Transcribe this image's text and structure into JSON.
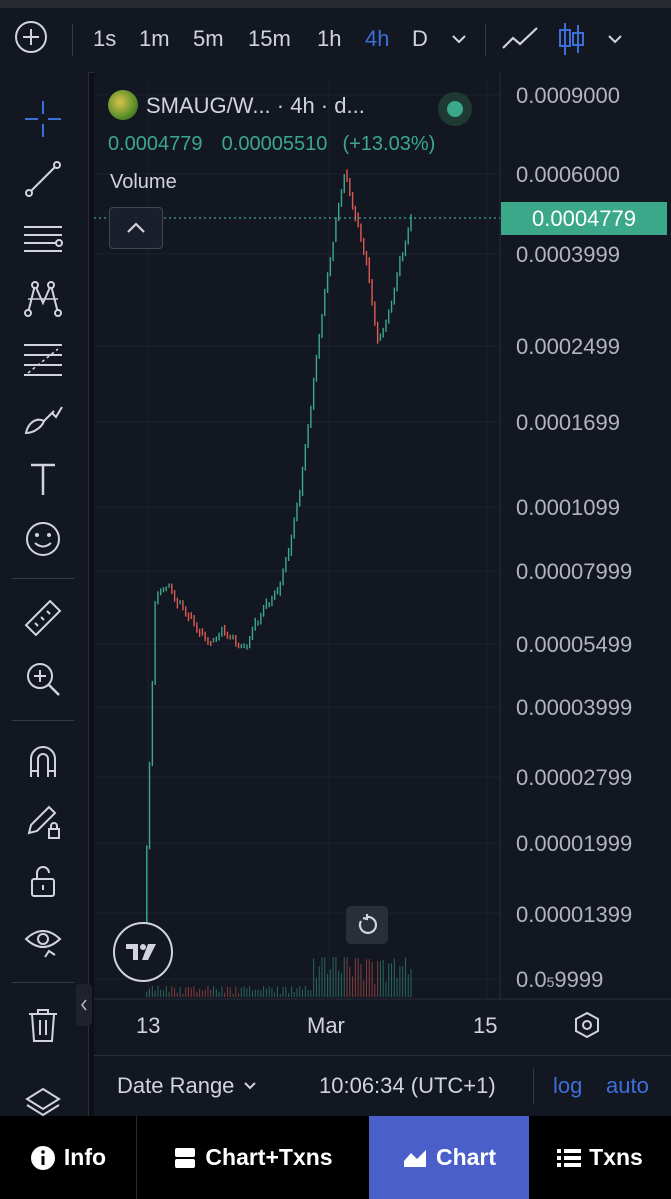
{
  "toolbar": {
    "timeframes": [
      "1s",
      "1m",
      "5m",
      "15m",
      "1h",
      "4h",
      "D"
    ],
    "active_timeframe": "4h"
  },
  "legend": {
    "title": "SMAUG/W... · 4h · d...",
    "close": "0.0004779",
    "change": "0.00005510",
    "change_pct": "(+13.03%)",
    "volume_label": "Volume"
  },
  "price_axis": {
    "labels": [
      "0.0009000",
      "0.0006000",
      "0.0003999",
      "0.0002499",
      "0.0001699",
      "0.0001099",
      "0.00007999",
      "0.00005499",
      "0.00003999",
      "0.00002799",
      "0.00001999",
      "0.00001399"
    ],
    "last_label_main": "0.0",
    "last_label_sub": "5",
    "last_label_tail": "9999",
    "current_price": "0.0004779"
  },
  "time_axis": {
    "labels": [
      "13",
      "Mar",
      "15"
    ]
  },
  "bottom": {
    "date_range": "Date Range",
    "clock": "10:06:34 (UTC+1)",
    "log": "log",
    "auto": "auto"
  },
  "nav": {
    "info": "Info",
    "chart_txns": "Chart+Txns",
    "chart": "Chart",
    "txns": "Txns"
  },
  "colors": {
    "up": "#3aa889",
    "down": "#e05a4f",
    "accent": "#4a5fc9"
  },
  "chart_data": {
    "type": "line",
    "title": "SMAUG/W... · 4h · d...",
    "y_scale": "log",
    "ylim": [
      9.99e-06,
      0.0009
    ],
    "x_labels": [
      "13",
      "Mar",
      "15"
    ],
    "series": [
      {
        "name": "SMAUG/W",
        "x": [
          0,
          1,
          2,
          3,
          4,
          5,
          6,
          7,
          8,
          9,
          10,
          11,
          12,
          13,
          14,
          15,
          16,
          17,
          18,
          19,
          20,
          21,
          22,
          23,
          24
        ],
        "values": [
          1.25e-05,
          6.8e-05,
          7.4e-05,
          6.8e-05,
          6.4e-05,
          5.9e-05,
          5.6e-05,
          6e-05,
          5.7e-05,
          5.4e-05,
          6.1e-05,
          6.7e-05,
          7.1e-05,
          8.7e-05,
          0.000118,
          0.000183,
          0.000295,
          0.00043,
          0.00061,
          0.00049,
          0.00039,
          0.00026,
          0.0003,
          0.00039,
          0.0004779
        ]
      }
    ]
  }
}
